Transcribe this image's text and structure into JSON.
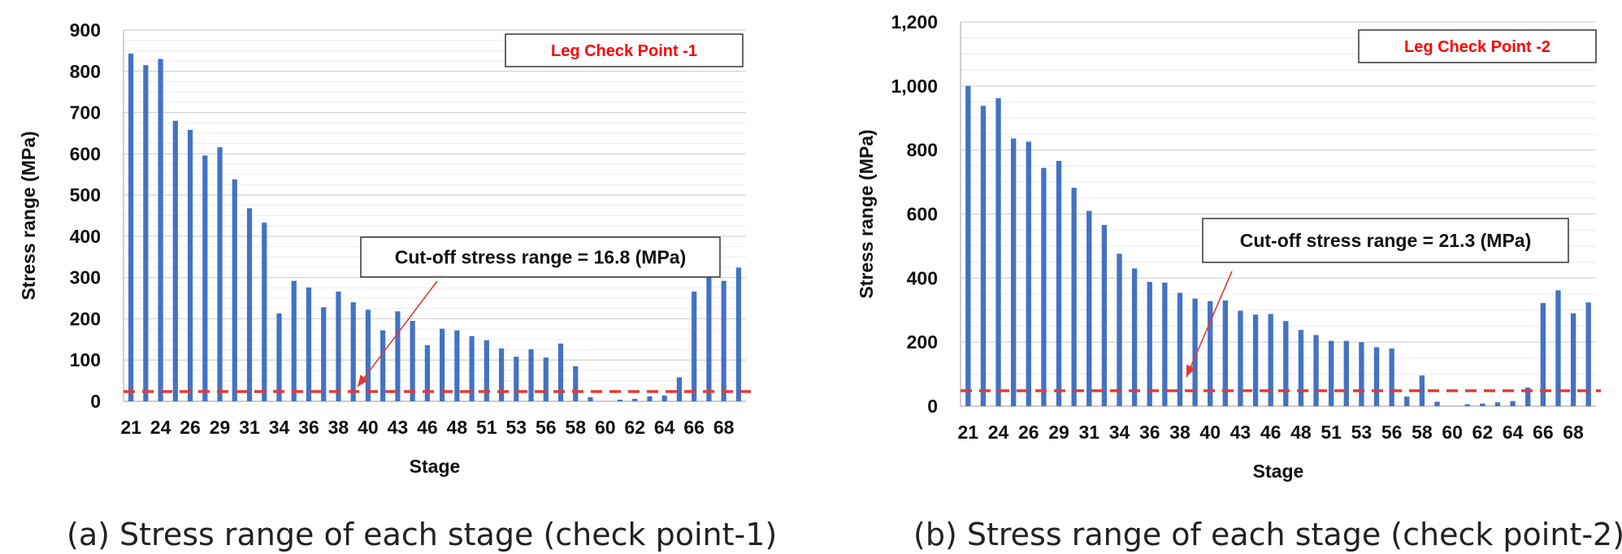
{
  "chart_data": [
    {
      "type": "bar",
      "caption": "(a) Stress range of each stage (check point-1)",
      "legend_label": "Leg Check Point -1",
      "annotation": "Cut-off stress range = 16.8 (MPa)",
      "cutoff": 16.8,
      "xlabel": "Stage",
      "ylabel": "Stress range (MPa)",
      "ylim": [
        0,
        900
      ],
      "yticks": [
        0,
        100,
        200,
        300,
        400,
        500,
        600,
        700,
        800,
        900
      ],
      "ytick_labels": [
        "0",
        "100",
        "200",
        "300",
        "400",
        "500",
        "600",
        "700",
        "800",
        "900"
      ],
      "x_tick_labels": [
        "21",
        "24",
        "26",
        "29",
        "31",
        "34",
        "36",
        "38",
        "40",
        "43",
        "46",
        "48",
        "51",
        "53",
        "56",
        "58",
        "60",
        "62",
        "64",
        "66",
        "68"
      ],
      "values": [
        843,
        815,
        830,
        680,
        658,
        596,
        616,
        538,
        468,
        433,
        213,
        292,
        276,
        228,
        266,
        240,
        222,
        172,
        218,
        195,
        136,
        176,
        172,
        158,
        148,
        128,
        108,
        126,
        106,
        140,
        85,
        10,
        0,
        4,
        6,
        12,
        14,
        58,
        266,
        310,
        292,
        324
      ],
      "accent": "#4472C4",
      "cutoff_color": "#e53935",
      "legend_text_color": "#ff0000"
    },
    {
      "type": "bar",
      "caption": "(b) Stress range of each stage (check point-2)",
      "legend_label": "Leg Check Point -2",
      "annotation": "Cut-off stress range = 21.3 (MPa)",
      "cutoff": 21.3,
      "xlabel": "Stage",
      "ylabel": "Stress range (MPa)",
      "ylim": [
        0,
        1200
      ],
      "yticks": [
        0,
        200,
        400,
        600,
        800,
        1000,
        1200
      ],
      "ytick_labels": [
        "0",
        "200",
        "400",
        "600",
        "800",
        "1,000",
        "1,200"
      ],
      "x_tick_labels": [
        "21",
        "24",
        "26",
        "29",
        "31",
        "34",
        "36",
        "38",
        "40",
        "43",
        "46",
        "48",
        "51",
        "53",
        "56",
        "58",
        "60",
        "62",
        "64",
        "66",
        "68"
      ],
      "values": [
        1000,
        938,
        962,
        836,
        826,
        744,
        766,
        682,
        610,
        566,
        476,
        430,
        388,
        386,
        354,
        336,
        328,
        330,
        298,
        286,
        288,
        266,
        238,
        222,
        204,
        204,
        200,
        184,
        180,
        30,
        96,
        14,
        0,
        6,
        8,
        12,
        16,
        58,
        322,
        362,
        290,
        324
      ],
      "accent": "#4472C4",
      "cutoff_color": "#e53935",
      "legend_text_color": "#ff0000"
    }
  ]
}
